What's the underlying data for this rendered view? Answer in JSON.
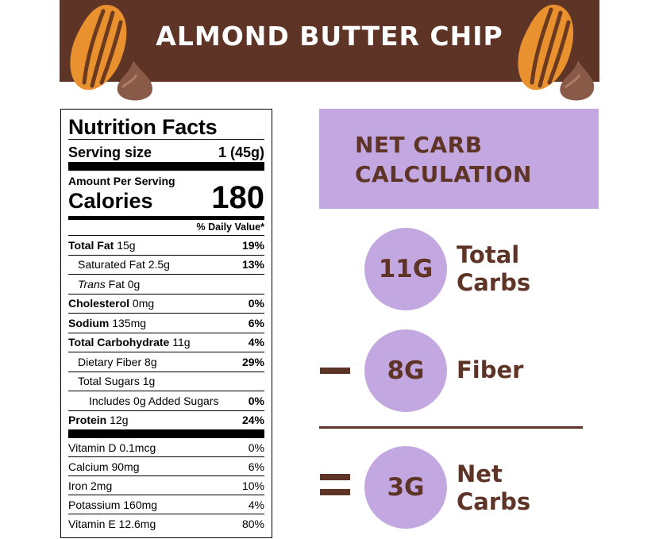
{
  "banner": {
    "title": "ALMOND BUTTER CHIP"
  },
  "nutrition": {
    "title": "Nutrition Facts",
    "serving_label": "Serving size",
    "serving_value": "1 (45g)",
    "amount_per_serving": "Amount Per Serving",
    "calories_label": "Calories",
    "calories_value": "180",
    "daily_value_header": "% Daily Value*",
    "rows": [
      {
        "name": "Total Fat",
        "amount": "15g",
        "dv": "19%"
      },
      {
        "name": "Saturated Fat",
        "amount": "2.5g",
        "dv": "13%"
      },
      {
        "name_italic": "Trans",
        "name": "Fat",
        "amount": "0g",
        "dv": ""
      },
      {
        "name": "Cholesterol",
        "amount": "0mg",
        "dv": "0%"
      },
      {
        "name": "Sodium",
        "amount": "135mg",
        "dv": "6%"
      },
      {
        "name": "Total Carbohydrate",
        "amount": "11g",
        "dv": "4%"
      },
      {
        "name": "Dietary Fiber",
        "amount": "8g",
        "dv": "29%"
      },
      {
        "name": "Total Sugars",
        "amount": "1g",
        "dv": ""
      },
      {
        "name": "Includes 0g Added Sugars",
        "amount": "",
        "dv": "0%"
      },
      {
        "name": "Protein",
        "amount": "12g",
        "dv": "24%"
      }
    ],
    "vitamins": [
      {
        "name": "Vitamin D 0.1mcg",
        "dv": "0%"
      },
      {
        "name": "Calcium 90mg",
        "dv": "6%"
      },
      {
        "name": "Iron 2mg",
        "dv": "10%"
      },
      {
        "name": "Potassium 160mg",
        "dv": "4%"
      },
      {
        "name": "Vitamin E 12.6mg",
        "dv": "80%"
      }
    ]
  },
  "net_carb": {
    "title_line1": "NET CARB",
    "title_line2": "CALCULATION",
    "total_value": "11G",
    "total_label_line1": "Total",
    "total_label_line2": "Carbs",
    "fiber_value": "8G",
    "fiber_label": "Fiber",
    "net_value": "3G",
    "net_label_line1": "Net",
    "net_label_line2": "Carbs"
  },
  "colors": {
    "brown": "#5e3427",
    "lavender": "#c3a7e0",
    "almond_orange": "#e8912e",
    "chip_brown": "#8a5a48"
  }
}
